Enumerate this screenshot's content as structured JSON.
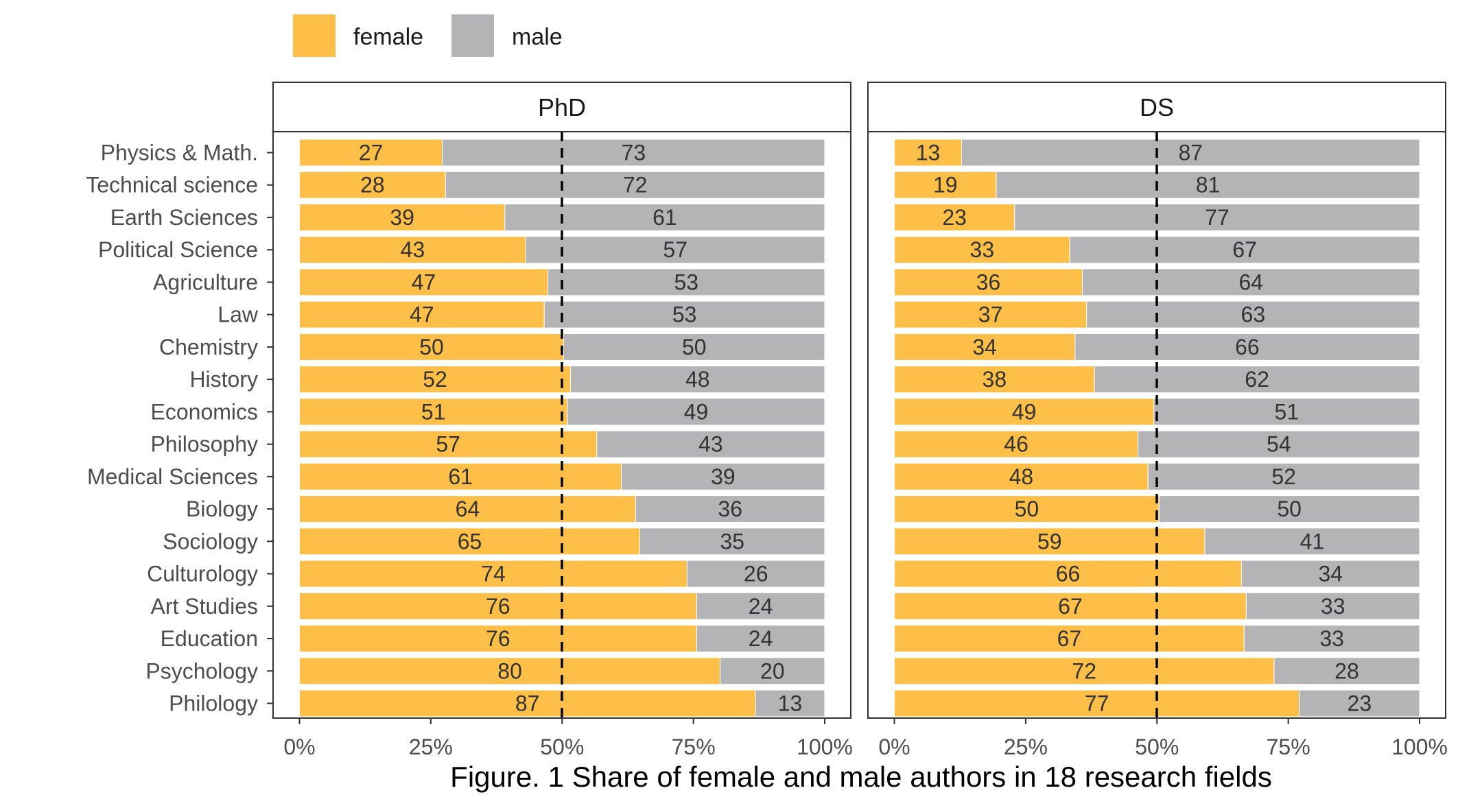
{
  "chart_data": {
    "type": "bar",
    "orientation": "horizontal",
    "stacked": true,
    "caption": "Figure. 1 Share of female and male authors in 18 research fields",
    "legend": {
      "position": "top-left",
      "entries": [
        {
          "name": "female",
          "color": "#FDBF47"
        },
        {
          "name": "male",
          "color": "#B4B4B6"
        }
      ]
    },
    "categories": [
      "Physics & Math.",
      "Technical science",
      "Earth Sciences",
      "Political Science",
      "Agriculture",
      "Law",
      "Chemistry",
      "History",
      "Economics",
      "Philosophy",
      "Medical Sciences",
      "Biology",
      "Sociology",
      "Culturology",
      "Art Studies",
      "Education",
      "Psychology",
      "Philology"
    ],
    "x_ticks": [
      "0%",
      "25%",
      "50%",
      "75%",
      "100%"
    ],
    "xlim": [
      0,
      100
    ],
    "reference_line": 50,
    "grid": false,
    "panels": [
      {
        "title": "PhD",
        "female": [
          27.2,
          27.8,
          39.1,
          43.1,
          47.3,
          46.6,
          50.3,
          51.6,
          51.0,
          56.6,
          61.3,
          64.0,
          64.8,
          73.8,
          75.6,
          75.6,
          80.1,
          86.8
        ],
        "male": [
          72.8,
          72.2,
          60.9,
          56.9,
          52.7,
          53.4,
          49.7,
          48.4,
          49.0,
          43.4,
          38.7,
          36.0,
          35.2,
          26.2,
          24.4,
          24.4,
          19.9,
          13.2
        ],
        "female_labels": [
          "27",
          "28",
          "39",
          "43",
          "47",
          "47",
          "50",
          "52",
          "51",
          "57",
          "61",
          "64",
          "65",
          "74",
          "76",
          "76",
          "80",
          "87"
        ],
        "male_labels": [
          "73",
          "72",
          "61",
          "57",
          "53",
          "53",
          "50",
          "48",
          "49",
          "43",
          "39",
          "36",
          "35",
          "26",
          "24",
          "24",
          "20",
          "13"
        ]
      },
      {
        "title": "DS",
        "female": [
          12.8,
          19.4,
          22.9,
          33.4,
          35.8,
          36.6,
          34.4,
          38.1,
          49.4,
          46.4,
          48.3,
          50.4,
          59.1,
          66.1,
          67.0,
          66.6,
          72.3,
          77.1
        ],
        "male": [
          87.2,
          80.6,
          77.1,
          66.6,
          64.2,
          63.4,
          65.6,
          61.9,
          50.6,
          53.6,
          51.7,
          49.6,
          40.9,
          33.9,
          33.0,
          33.4,
          27.7,
          22.9
        ],
        "female_labels": [
          "13",
          "19",
          "23",
          "33",
          "36",
          "37",
          "34",
          "38",
          "49",
          "46",
          "48",
          "50",
          "59",
          "66",
          "67",
          "67",
          "72",
          "77"
        ],
        "male_labels": [
          "87",
          "81",
          "77",
          "67",
          "64",
          "63",
          "66",
          "62",
          "51",
          "54",
          "52",
          "50",
          "41",
          "34",
          "33",
          "33",
          "28",
          "23"
        ]
      }
    ]
  }
}
